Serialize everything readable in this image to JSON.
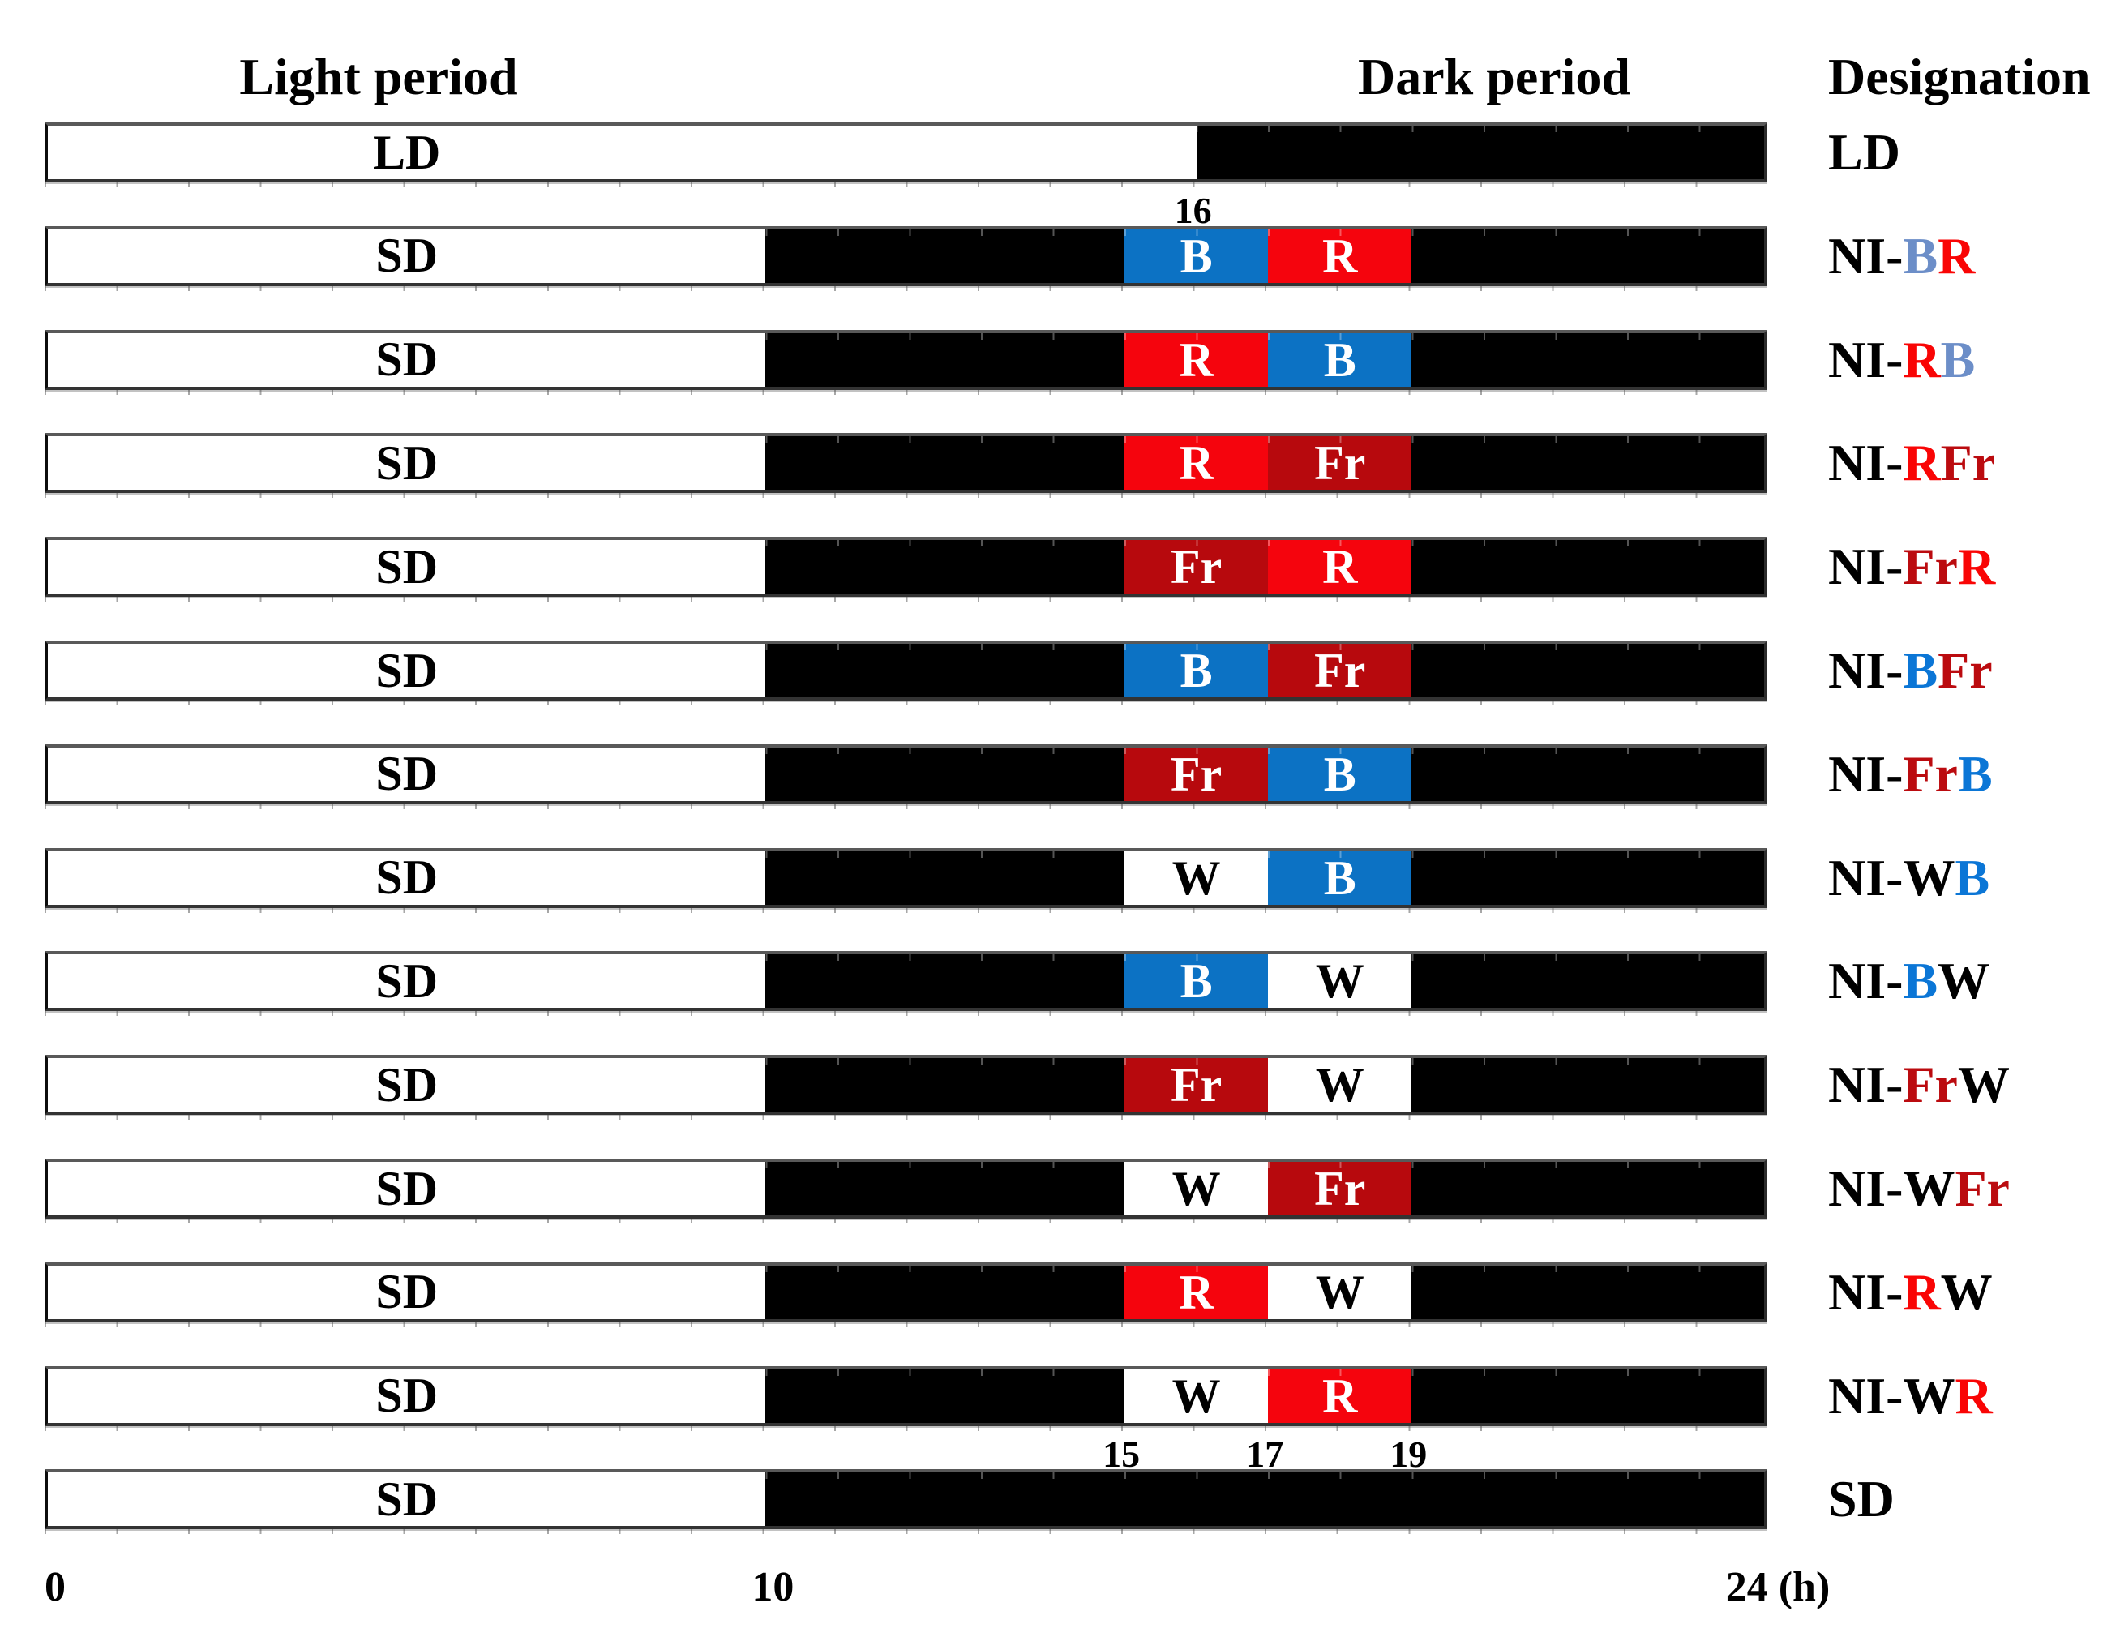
{
  "header": {
    "light": "Light period",
    "dark": "Dark period",
    "designation": "Designation"
  },
  "colors": {
    "bar_white": "#FFFFFF",
    "bar_black": "#000000",
    "bar_blue": "#0C72C4",
    "bar_red": "#F5040D",
    "bar_farred": "#B7090D",
    "letter_white": "#FFFFFF",
    "letter_black": "#000000",
    "desig_black": "#000000",
    "desig_red": "#F90505",
    "desig_farred": "#BB0B0F",
    "desig_blue_light": "#6C8EC8",
    "desig_blue_strong": "#0B76D6"
  },
  "axis": {
    "unit_note": "hours of day, 0 to 24",
    "ticks": [
      {
        "label": "0",
        "hour": 0
      },
      {
        "label": "10",
        "hour": 10
      },
      {
        "label": "24 (h)",
        "hour": 24
      }
    ]
  },
  "markers": [
    {
      "label": "16",
      "hour": 16,
      "below_row": 0
    },
    {
      "label": "15",
      "hour": 15,
      "below_row": 12
    },
    {
      "label": "17",
      "hour": 17,
      "below_row": 12
    },
    {
      "label": "19",
      "hour": 19,
      "below_row": 12
    }
  ],
  "rows": [
    {
      "bar_label": "LD",
      "designation": [
        {
          "text": "LD",
          "color": "desig_black"
        }
      ],
      "segments": [
        {
          "from": 0,
          "to": 16,
          "fill": "bar_white"
        },
        {
          "from": 16,
          "to": 24,
          "fill": "bar_black"
        }
      ]
    },
    {
      "bar_label": "SD",
      "designation": [
        {
          "text": "NI-",
          "color": "desig_black"
        },
        {
          "text": "B",
          "color": "desig_blue_light"
        },
        {
          "text": "R",
          "color": "desig_red"
        }
      ],
      "segments": [
        {
          "from": 0,
          "to": 10,
          "fill": "bar_white"
        },
        {
          "from": 10,
          "to": 15,
          "fill": "bar_black"
        },
        {
          "from": 15,
          "to": 17,
          "fill": "bar_blue",
          "letter": "B",
          "letter_color": "letter_white"
        },
        {
          "from": 17,
          "to": 19,
          "fill": "bar_red",
          "letter": "R",
          "letter_color": "letter_white"
        },
        {
          "from": 19,
          "to": 24,
          "fill": "bar_black"
        }
      ]
    },
    {
      "bar_label": "SD",
      "designation": [
        {
          "text": "NI-",
          "color": "desig_black"
        },
        {
          "text": "R",
          "color": "desig_red"
        },
        {
          "text": "B",
          "color": "desig_blue_light"
        }
      ],
      "segments": [
        {
          "from": 0,
          "to": 10,
          "fill": "bar_white"
        },
        {
          "from": 10,
          "to": 15,
          "fill": "bar_black"
        },
        {
          "from": 15,
          "to": 17,
          "fill": "bar_red",
          "letter": "R",
          "letter_color": "letter_white"
        },
        {
          "from": 17,
          "to": 19,
          "fill": "bar_blue",
          "letter": "B",
          "letter_color": "letter_white"
        },
        {
          "from": 19,
          "to": 24,
          "fill": "bar_black"
        }
      ]
    },
    {
      "bar_label": "SD",
      "designation": [
        {
          "text": "NI-",
          "color": "desig_black"
        },
        {
          "text": "R",
          "color": "desig_red"
        },
        {
          "text": "Fr",
          "color": "desig_farred"
        }
      ],
      "segments": [
        {
          "from": 0,
          "to": 10,
          "fill": "bar_white"
        },
        {
          "from": 10,
          "to": 15,
          "fill": "bar_black"
        },
        {
          "from": 15,
          "to": 17,
          "fill": "bar_red",
          "letter": "R",
          "letter_color": "letter_white"
        },
        {
          "from": 17,
          "to": 19,
          "fill": "bar_farred",
          "letter": "Fr",
          "letter_color": "letter_white"
        },
        {
          "from": 19,
          "to": 24,
          "fill": "bar_black"
        }
      ]
    },
    {
      "bar_label": "SD",
      "designation": [
        {
          "text": "NI-",
          "color": "desig_black"
        },
        {
          "text": "Fr",
          "color": "desig_farred"
        },
        {
          "text": "R",
          "color": "desig_red"
        }
      ],
      "segments": [
        {
          "from": 0,
          "to": 10,
          "fill": "bar_white"
        },
        {
          "from": 10,
          "to": 15,
          "fill": "bar_black"
        },
        {
          "from": 15,
          "to": 17,
          "fill": "bar_farred",
          "letter": "Fr",
          "letter_color": "letter_white"
        },
        {
          "from": 17,
          "to": 19,
          "fill": "bar_red",
          "letter": "R",
          "letter_color": "letter_white"
        },
        {
          "from": 19,
          "to": 24,
          "fill": "bar_black"
        }
      ]
    },
    {
      "bar_label": "SD",
      "designation": [
        {
          "text": "NI-",
          "color": "desig_black"
        },
        {
          "text": "B",
          "color": "desig_blue_strong"
        },
        {
          "text": "Fr",
          "color": "desig_farred"
        }
      ],
      "segments": [
        {
          "from": 0,
          "to": 10,
          "fill": "bar_white"
        },
        {
          "from": 10,
          "to": 15,
          "fill": "bar_black"
        },
        {
          "from": 15,
          "to": 17,
          "fill": "bar_blue",
          "letter": "B",
          "letter_color": "letter_white"
        },
        {
          "from": 17,
          "to": 19,
          "fill": "bar_farred",
          "letter": "Fr",
          "letter_color": "letter_white"
        },
        {
          "from": 19,
          "to": 24,
          "fill": "bar_black"
        }
      ]
    },
    {
      "bar_label": "SD",
      "designation": [
        {
          "text": "NI-",
          "color": "desig_black"
        },
        {
          "text": "Fr",
          "color": "desig_farred"
        },
        {
          "text": "B",
          "color": "desig_blue_strong"
        }
      ],
      "segments": [
        {
          "from": 0,
          "to": 10,
          "fill": "bar_white"
        },
        {
          "from": 10,
          "to": 15,
          "fill": "bar_black"
        },
        {
          "from": 15,
          "to": 17,
          "fill": "bar_farred",
          "letter": "Fr",
          "letter_color": "letter_white"
        },
        {
          "from": 17,
          "to": 19,
          "fill": "bar_blue",
          "letter": "B",
          "letter_color": "letter_white"
        },
        {
          "from": 19,
          "to": 24,
          "fill": "bar_black"
        }
      ]
    },
    {
      "bar_label": "SD",
      "designation": [
        {
          "text": "NI-W",
          "color": "desig_black"
        },
        {
          "text": "B",
          "color": "desig_blue_strong"
        }
      ],
      "segments": [
        {
          "from": 0,
          "to": 10,
          "fill": "bar_white"
        },
        {
          "from": 10,
          "to": 15,
          "fill": "bar_black"
        },
        {
          "from": 15,
          "to": 17,
          "fill": "bar_white",
          "letter": "W",
          "letter_color": "letter_black"
        },
        {
          "from": 17,
          "to": 19,
          "fill": "bar_blue",
          "letter": "B",
          "letter_color": "letter_white"
        },
        {
          "from": 19,
          "to": 24,
          "fill": "bar_black"
        }
      ]
    },
    {
      "bar_label": "SD",
      "designation": [
        {
          "text": "NI-",
          "color": "desig_black"
        },
        {
          "text": "B",
          "color": "desig_blue_strong"
        },
        {
          "text": "W",
          "color": "desig_black"
        }
      ],
      "segments": [
        {
          "from": 0,
          "to": 10,
          "fill": "bar_white"
        },
        {
          "from": 10,
          "to": 15,
          "fill": "bar_black"
        },
        {
          "from": 15,
          "to": 17,
          "fill": "bar_blue",
          "letter": "B",
          "letter_color": "letter_white"
        },
        {
          "from": 17,
          "to": 19,
          "fill": "bar_white",
          "letter": "W",
          "letter_color": "letter_black"
        },
        {
          "from": 19,
          "to": 24,
          "fill": "bar_black"
        }
      ]
    },
    {
      "bar_label": "SD",
      "designation": [
        {
          "text": "NI-",
          "color": "desig_black"
        },
        {
          "text": "Fr",
          "color": "desig_farred"
        },
        {
          "text": "W",
          "color": "desig_black"
        }
      ],
      "segments": [
        {
          "from": 0,
          "to": 10,
          "fill": "bar_white"
        },
        {
          "from": 10,
          "to": 15,
          "fill": "bar_black"
        },
        {
          "from": 15,
          "to": 17,
          "fill": "bar_farred",
          "letter": "Fr",
          "letter_color": "letter_white"
        },
        {
          "from": 17,
          "to": 19,
          "fill": "bar_white",
          "letter": "W",
          "letter_color": "letter_black"
        },
        {
          "from": 19,
          "to": 24,
          "fill": "bar_black"
        }
      ]
    },
    {
      "bar_label": "SD",
      "designation": [
        {
          "text": "NI-W",
          "color": "desig_black"
        },
        {
          "text": "Fr",
          "color": "desig_farred"
        }
      ],
      "segments": [
        {
          "from": 0,
          "to": 10,
          "fill": "bar_white"
        },
        {
          "from": 10,
          "to": 15,
          "fill": "bar_black"
        },
        {
          "from": 15,
          "to": 17,
          "fill": "bar_white",
          "letter": "W",
          "letter_color": "letter_black"
        },
        {
          "from": 17,
          "to": 19,
          "fill": "bar_farred",
          "letter": "Fr",
          "letter_color": "letter_white"
        },
        {
          "from": 19,
          "to": 24,
          "fill": "bar_black"
        }
      ]
    },
    {
      "bar_label": "SD",
      "designation": [
        {
          "text": "NI-",
          "color": "desig_black"
        },
        {
          "text": "R",
          "color": "desig_red"
        },
        {
          "text": "W",
          "color": "desig_black"
        }
      ],
      "segments": [
        {
          "from": 0,
          "to": 10,
          "fill": "bar_white"
        },
        {
          "from": 10,
          "to": 15,
          "fill": "bar_black"
        },
        {
          "from": 15,
          "to": 17,
          "fill": "bar_red",
          "letter": "R",
          "letter_color": "letter_white"
        },
        {
          "from": 17,
          "to": 19,
          "fill": "bar_white",
          "letter": "W",
          "letter_color": "letter_black"
        },
        {
          "from": 19,
          "to": 24,
          "fill": "bar_black"
        }
      ]
    },
    {
      "bar_label": "SD",
      "designation": [
        {
          "text": "NI-W",
          "color": "desig_black"
        },
        {
          "text": "R",
          "color": "desig_red"
        }
      ],
      "segments": [
        {
          "from": 0,
          "to": 10,
          "fill": "bar_white"
        },
        {
          "from": 10,
          "to": 15,
          "fill": "bar_black"
        },
        {
          "from": 15,
          "to": 17,
          "fill": "bar_white",
          "letter": "W",
          "letter_color": "letter_black"
        },
        {
          "from": 17,
          "to": 19,
          "fill": "bar_red",
          "letter": "R",
          "letter_color": "letter_white"
        },
        {
          "from": 19,
          "to": 24,
          "fill": "bar_black"
        }
      ]
    },
    {
      "bar_label": "SD",
      "designation": [
        {
          "text": "SD",
          "color": "desig_black"
        }
      ],
      "segments": [
        {
          "from": 0,
          "to": 10,
          "fill": "bar_white"
        },
        {
          "from": 10,
          "to": 24,
          "fill": "bar_black"
        }
      ]
    }
  ]
}
